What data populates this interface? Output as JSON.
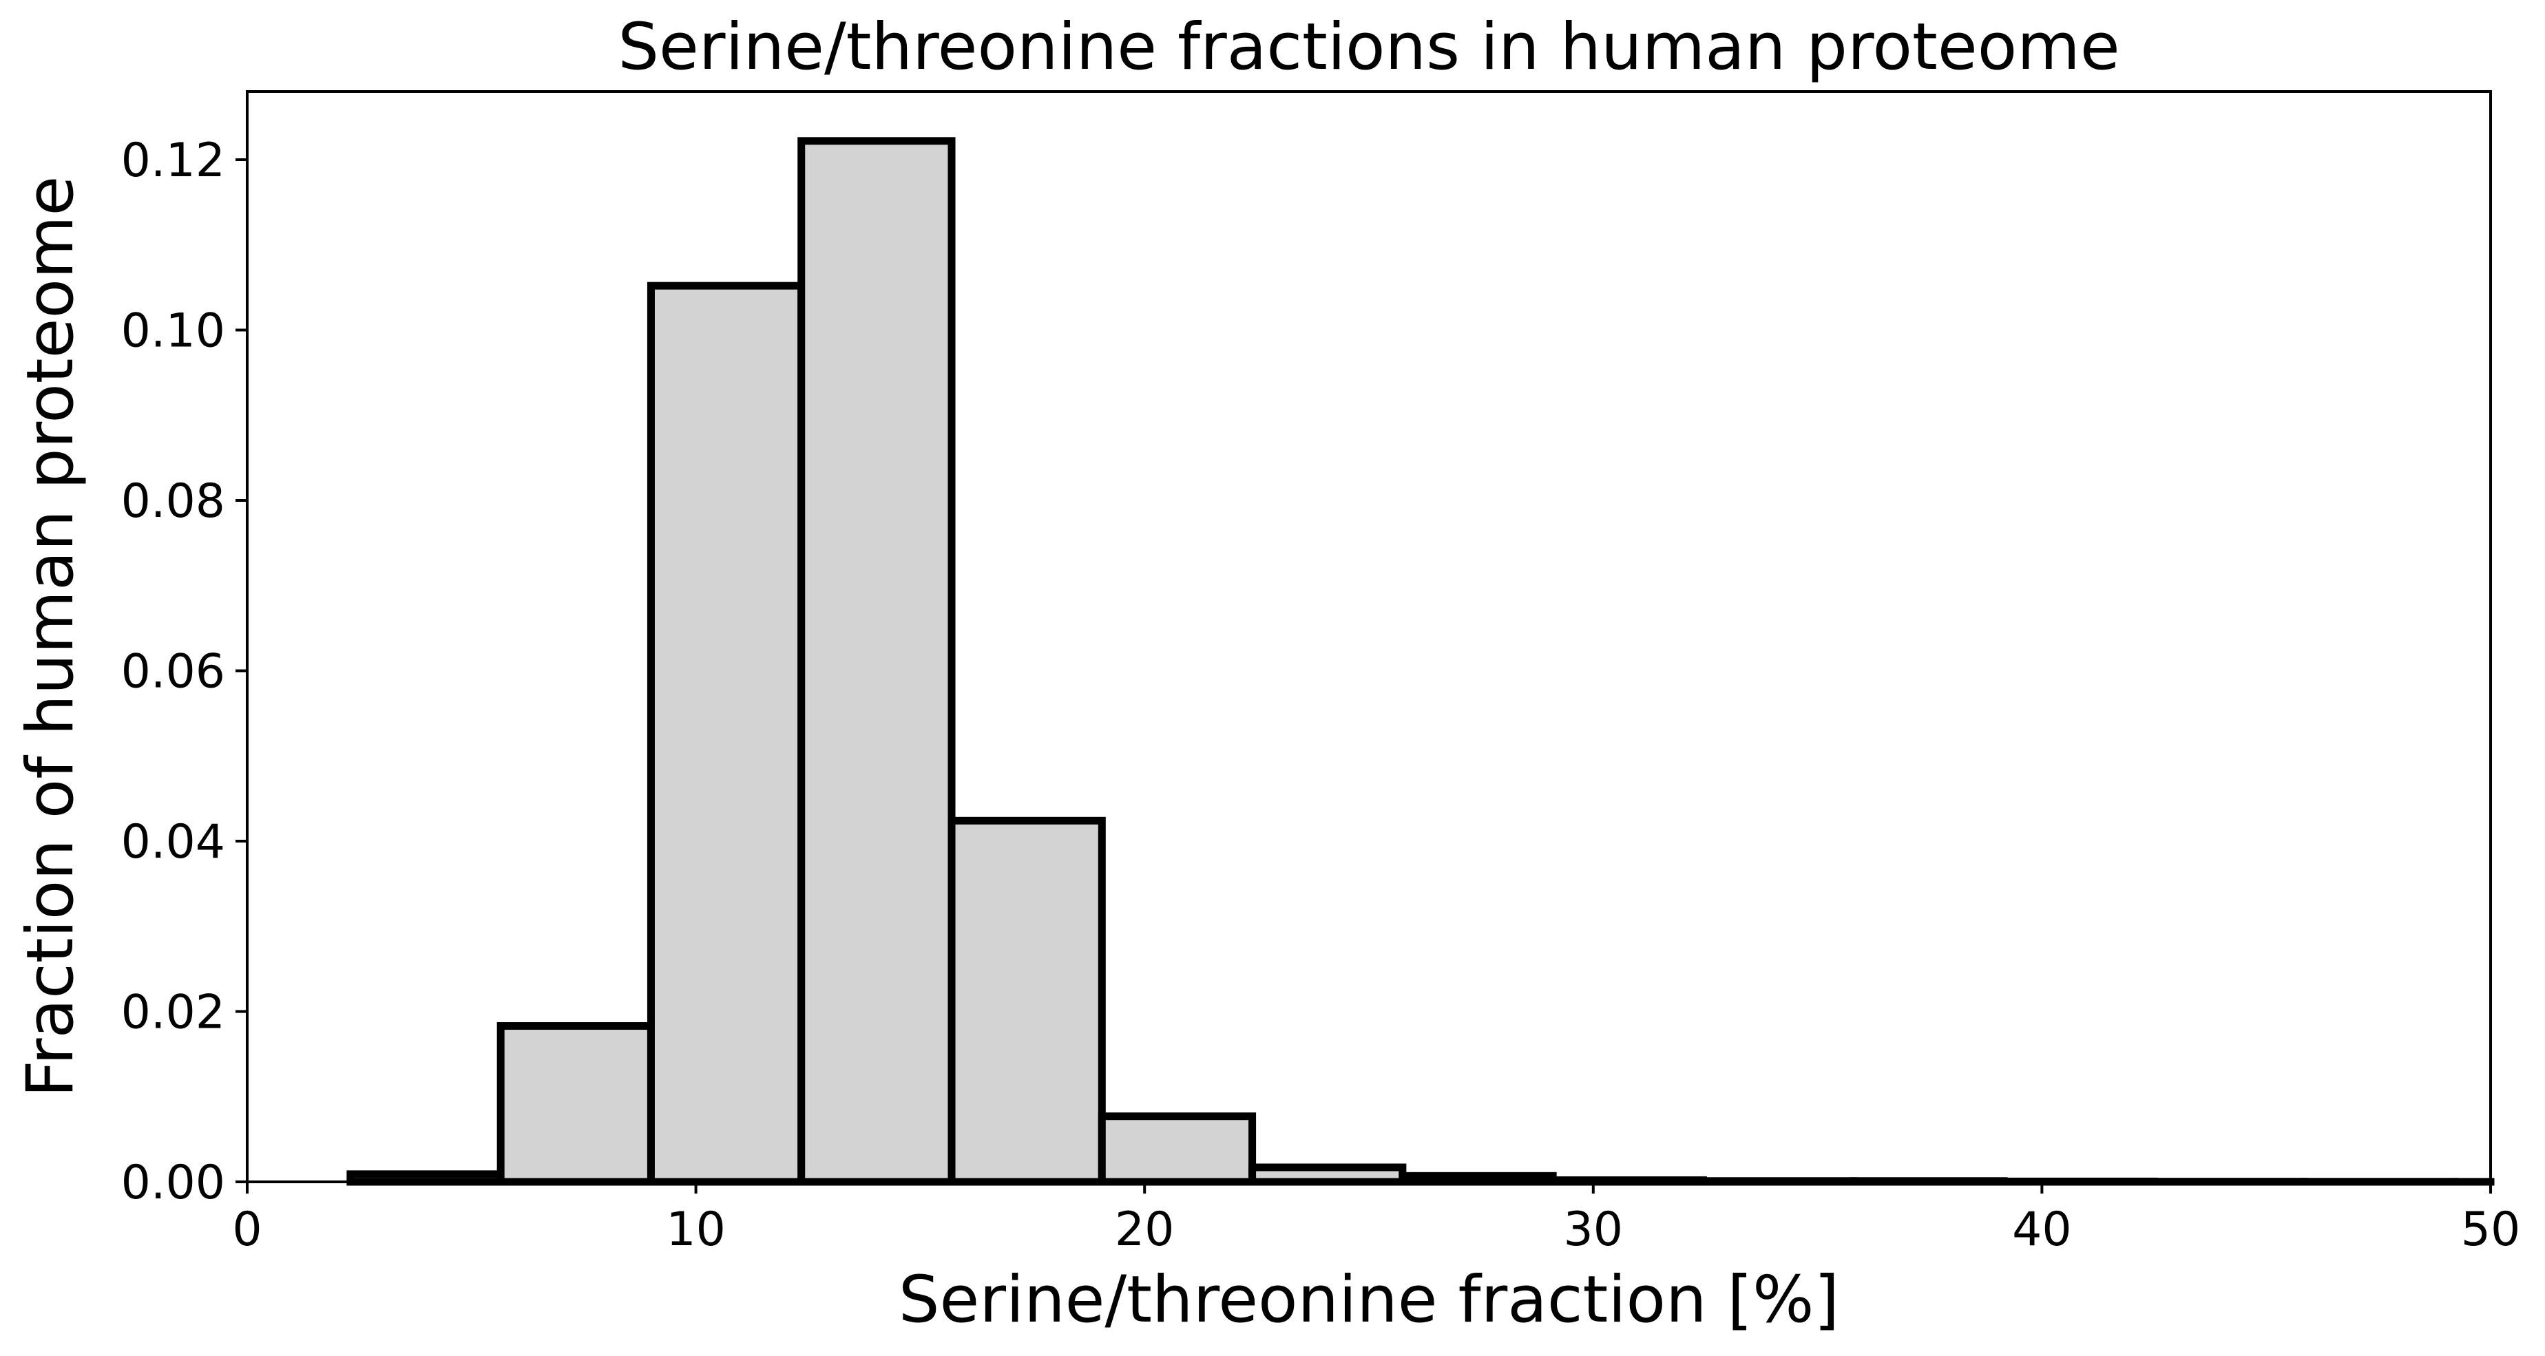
{
  "chart_data": {
    "type": "bar",
    "title": "Serine/threonine fractions in human proteome",
    "xlabel": "Serine/threonine fraction [%]",
    "ylabel": "Fraction of human proteome",
    "xlim": [
      0,
      50
    ],
    "ylim": [
      0,
      0.128
    ],
    "xticks": [
      0,
      10,
      20,
      30,
      40,
      50
    ],
    "xtick_labels": [
      "0",
      "10",
      "20",
      "30",
      "40",
      "50"
    ],
    "yticks": [
      0.0,
      0.02,
      0.04,
      0.06,
      0.08,
      0.1,
      0.12
    ],
    "ytick_labels": [
      "0.00",
      "0.02",
      "0.04",
      "0.06",
      "0.08",
      "0.10",
      "0.12"
    ],
    "bins": [
      {
        "x0": 2.3,
        "x1": 5.65,
        "value": 0.0009
      },
      {
        "x0": 5.65,
        "x1": 9.0,
        "value": 0.0183
      },
      {
        "x0": 9.0,
        "x1": 12.35,
        "value": 0.1052
      },
      {
        "x0": 12.35,
        "x1": 15.7,
        "value": 0.1222
      },
      {
        "x0": 15.7,
        "x1": 19.05,
        "value": 0.0424
      },
      {
        "x0": 19.05,
        "x1": 22.4,
        "value": 0.0077
      },
      {
        "x0": 22.4,
        "x1": 25.75,
        "value": 0.0017
      },
      {
        "x0": 25.75,
        "x1": 29.1,
        "value": 0.0007
      },
      {
        "x0": 29.1,
        "x1": 32.45,
        "value": 0.0002
      },
      {
        "x0": 32.45,
        "x1": 35.8,
        "value": 0.0001
      },
      {
        "x0": 35.8,
        "x1": 39.15,
        "value": 0.0001
      },
      {
        "x0": 39.15,
        "x1": 42.5,
        "value": 5e-05
      },
      {
        "x0": 42.5,
        "x1": 45.85,
        "value": 3e-05
      },
      {
        "x0": 45.85,
        "x1": 49.2,
        "value": 2e-05
      },
      {
        "x0": 49.2,
        "x1": 50.0,
        "value": 1e-05
      }
    ],
    "bar_fill": "#d3d3d3",
    "bar_edge": "#000000",
    "grid": false,
    "legend": "none"
  }
}
